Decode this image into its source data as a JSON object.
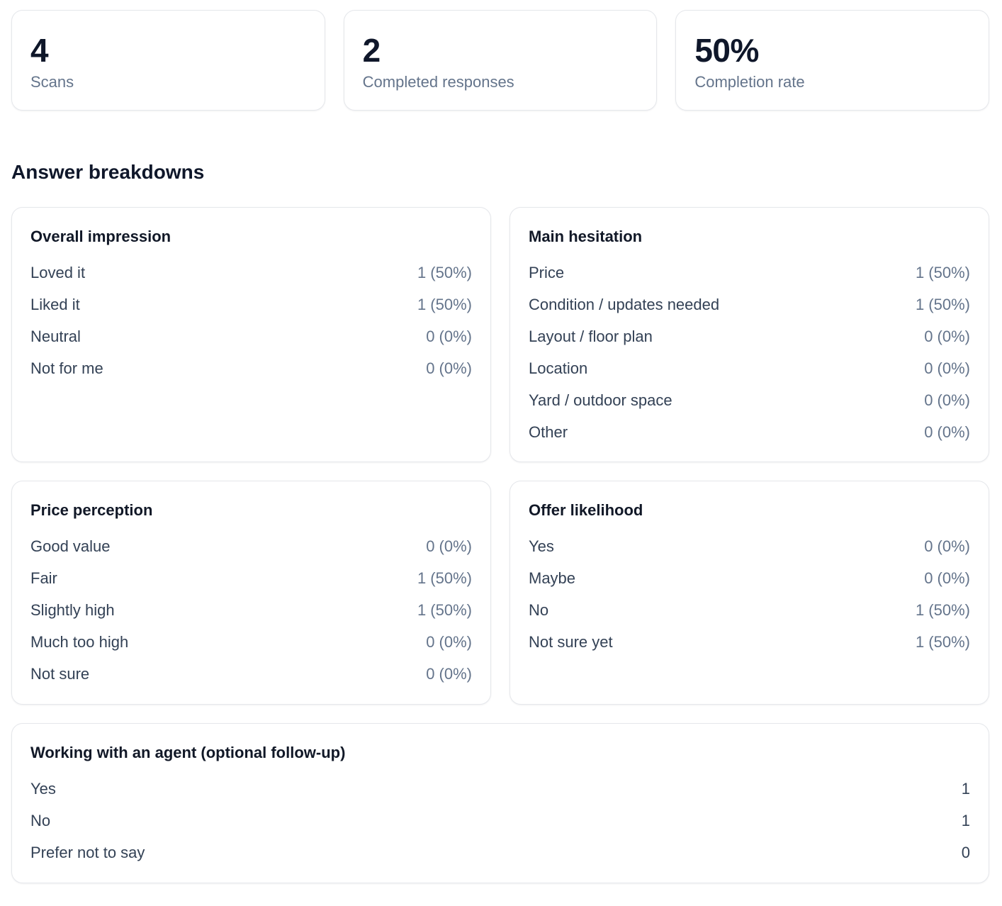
{
  "stats": [
    {
      "value": "4",
      "label": "Scans"
    },
    {
      "value": "2",
      "label": "Completed responses"
    },
    {
      "value": "50%",
      "label": "Completion rate"
    }
  ],
  "section_title": "Answer breakdowns",
  "questions": [
    {
      "title": "Overall impression",
      "options": [
        {
          "label": "Loved it",
          "value": "1 (50%)"
        },
        {
          "label": "Liked it",
          "value": "1 (50%)"
        },
        {
          "label": "Neutral",
          "value": "0 (0%)"
        },
        {
          "label": "Not for me",
          "value": "0 (0%)"
        }
      ]
    },
    {
      "title": "Main hesitation",
      "options": [
        {
          "label": "Price",
          "value": "1 (50%)"
        },
        {
          "label": "Condition / updates needed",
          "value": "1 (50%)"
        },
        {
          "label": "Layout / floor plan",
          "value": "0 (0%)"
        },
        {
          "label": "Location",
          "value": "0 (0%)"
        },
        {
          "label": "Yard / outdoor space",
          "value": "0 (0%)"
        },
        {
          "label": "Other",
          "value": "0 (0%)"
        }
      ]
    },
    {
      "title": "Price perception",
      "options": [
        {
          "label": "Good value",
          "value": "0 (0%)"
        },
        {
          "label": "Fair",
          "value": "1 (50%)"
        },
        {
          "label": "Slightly high",
          "value": "1 (50%)"
        },
        {
          "label": "Much too high",
          "value": "0 (0%)"
        },
        {
          "label": "Not sure",
          "value": "0 (0%)"
        }
      ]
    },
    {
      "title": "Offer likelihood",
      "options": [
        {
          "label": "Yes",
          "value": "0 (0%)"
        },
        {
          "label": "Maybe",
          "value": "0 (0%)"
        },
        {
          "label": "No",
          "value": "1 (50%)"
        },
        {
          "label": "Not sure yet",
          "value": "1 (50%)"
        }
      ]
    }
  ],
  "agent_question": {
    "title": "Working with an agent (optional follow-up)",
    "options": [
      {
        "label": "Yes",
        "value": "1"
      },
      {
        "label": "No",
        "value": "1"
      },
      {
        "label": "Prefer not to say",
        "value": "0"
      }
    ]
  }
}
